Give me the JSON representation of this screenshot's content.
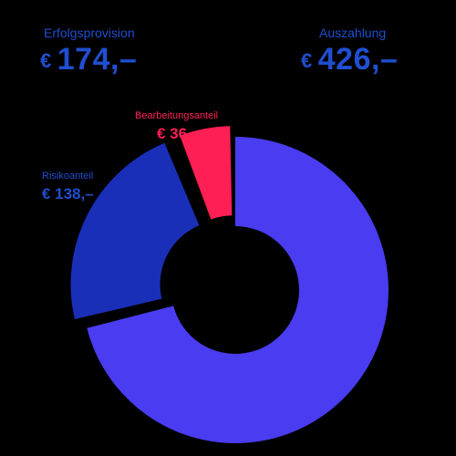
{
  "header": {
    "left": {
      "label": "Erfolgsprovision",
      "currency": "€",
      "amount": "174,–"
    },
    "right": {
      "label": "Auszahlung",
      "currency": "€",
      "amount": "426,–"
    }
  },
  "chart_data": {
    "type": "pie",
    "title": "",
    "slices": [
      {
        "name": "Auszahlung",
        "value": 426,
        "color": "#4a3cf0",
        "label": "",
        "value_label": ""
      },
      {
        "name": "Risikoanteil",
        "value": 138,
        "color": "#1a2fb8",
        "label": "Risikoanteil",
        "value_label": "€ 138,–"
      },
      {
        "name": "Bearbeitungsanteil",
        "value": 36,
        "color": "#ff1f55",
        "label": "Bearbeitungsanteil",
        "value_label": "€ 36,–"
      }
    ],
    "colors": {
      "label_blue": "#1f4fd1",
      "label_red": "#ff1f55"
    }
  }
}
